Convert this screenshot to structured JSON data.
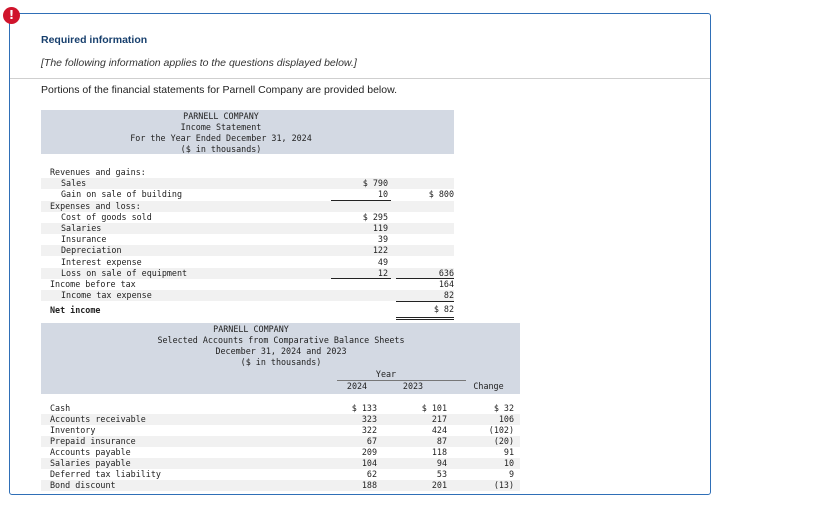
{
  "alert": {
    "glyph": "!"
  },
  "required_info": {
    "title": "Required information",
    "note": "[The following information applies to the questions displayed below.]",
    "intro": "Portions of the financial statements for Parnell Company are provided below."
  },
  "income_statement": {
    "company": "PARNELL COMPANY",
    "title": "Income Statement",
    "period": "For the Year Ended December 31, 2024",
    "units": "($ in thousands)",
    "rows": [
      {
        "label": "Revenues and gains:",
        "indent": 0,
        "col1": "",
        "col2": ""
      },
      {
        "label": "Sales",
        "indent": 1,
        "col1": "$ 790",
        "col2": ""
      },
      {
        "label": "Gain on sale of building",
        "indent": 1,
        "col1": "10",
        "col2": "$ 800"
      },
      {
        "label": "Expenses and loss:",
        "indent": 0,
        "col1": "",
        "col2": ""
      },
      {
        "label": "Cost of goods sold",
        "indent": 1,
        "col1": "$ 295",
        "col2": ""
      },
      {
        "label": "Salaries",
        "indent": 1,
        "col1": "119",
        "col2": ""
      },
      {
        "label": "Insurance",
        "indent": 1,
        "col1": "39",
        "col2": ""
      },
      {
        "label": "Depreciation",
        "indent": 1,
        "col1": "122",
        "col2": ""
      },
      {
        "label": "Interest expense",
        "indent": 1,
        "col1": "49",
        "col2": ""
      },
      {
        "label": "Loss on sale of equipment",
        "indent": 1,
        "col1": "12",
        "col2": "636"
      },
      {
        "label": "Income before tax",
        "indent": 0,
        "col1": "",
        "col2": "164"
      },
      {
        "label": "Income tax expense",
        "indent": 1,
        "col1": "",
        "col2": "82"
      },
      {
        "label": "Net income",
        "indent": 0,
        "col1": "",
        "col2": "$ 82"
      }
    ]
  },
  "balance_sheets": {
    "company": "PARNELL COMPANY",
    "title": "Selected Accounts from Comparative Balance Sheets",
    "date": "December 31, 2024 and 2023",
    "units": "($ in thousands)",
    "year_header": "Year",
    "columns": [
      "2024",
      "2023",
      "Change"
    ],
    "rows": [
      {
        "label": "Cash",
        "y2024": "$ 133",
        "y2023": "$ 101",
        "change": "$ 32"
      },
      {
        "label": "Accounts receivable",
        "y2024": "323",
        "y2023": "217",
        "change": "106"
      },
      {
        "label": "Inventory",
        "y2024": "322",
        "y2023": "424",
        "change": "(102)"
      },
      {
        "label": "Prepaid insurance",
        "y2024": "67",
        "y2023": "87",
        "change": "(20)"
      },
      {
        "label": "Accounts payable",
        "y2024": "209",
        "y2023": "118",
        "change": "91"
      },
      {
        "label": "Salaries payable",
        "y2024": "104",
        "y2023": "94",
        "change": "10"
      },
      {
        "label": "Deferred tax liability",
        "y2024": "62",
        "y2023": "53",
        "change": "9"
      },
      {
        "label": "Bond discount",
        "y2024": "188",
        "y2023": "201",
        "change": "(13)"
      }
    ]
  }
}
